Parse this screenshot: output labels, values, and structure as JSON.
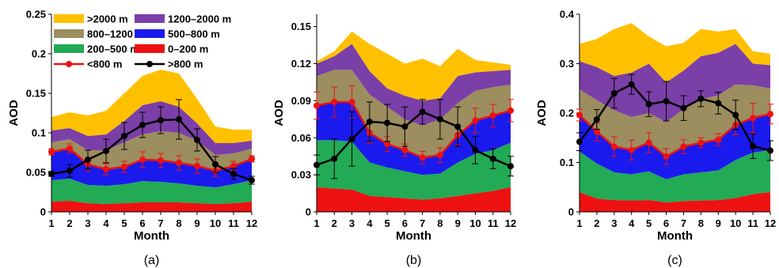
{
  "colors": {
    "band_0_200": "#ee1111",
    "band_200_500": "#22aa55",
    "band_500_800": "#1a1aee",
    "band_800_1200": "#9c8e5e",
    "band_1200_2000": "#7b3fa8",
    "band_gt2000": "#ffc000",
    "line_lt800": "#ee1111",
    "line_gt800": "#000000"
  },
  "legend": {
    "gt2000": ">2000 m",
    "b1200_2000": "1200–2000 m",
    "b800_1200": "800–1200 m",
    "b500_800": "500–800 m",
    "b200_500": "200–500 m",
    "b0_200": "0–200 m",
    "lt800": "<800 m",
    "gt800": ">800 m"
  },
  "chart_data": [
    {
      "type": "area",
      "panel_label": "(a)",
      "xlabel": "Month",
      "ylabel": "AOD",
      "x": [
        1,
        2,
        3,
        4,
        5,
        6,
        7,
        8,
        9,
        10,
        11,
        12
      ],
      "ylim": [
        0,
        0.25
      ],
      "yticks": [
        "0",
        "0.05",
        "0.1",
        "0.15",
        "0.2",
        "0.25"
      ],
      "legend_position": "top-left",
      "stacked_boundaries": [
        {
          "name": "0–200 m",
          "top": [
            0.013,
            0.014,
            0.011,
            0.01,
            0.011,
            0.012,
            0.012,
            0.012,
            0.011,
            0.01,
            0.011,
            0.013
          ]
        },
        {
          "name": "200–500 m",
          "top": [
            0.04,
            0.042,
            0.034,
            0.033,
            0.035,
            0.039,
            0.038,
            0.036,
            0.033,
            0.031,
            0.035,
            0.04
          ]
        },
        {
          "name": "500–800 m",
          "top": [
            0.076,
            0.08,
            0.06,
            0.054,
            0.057,
            0.066,
            0.065,
            0.062,
            0.058,
            0.052,
            0.058,
            0.067
          ]
        },
        {
          "name": "800–1200 m",
          "top": [
            0.088,
            0.092,
            0.078,
            0.078,
            0.088,
            0.098,
            0.102,
            0.1,
            0.09,
            0.072,
            0.074,
            0.08
          ]
        },
        {
          "name": "1200–2000 m",
          "top": [
            0.103,
            0.106,
            0.096,
            0.098,
            0.115,
            0.135,
            0.14,
            0.133,
            0.112,
            0.087,
            0.087,
            0.09
          ]
        },
        {
          "name": ">2000 m",
          "top": [
            0.12,
            0.126,
            0.122,
            0.128,
            0.15,
            0.172,
            0.18,
            0.175,
            0.143,
            0.108,
            0.104,
            0.104
          ]
        }
      ],
      "lines": [
        {
          "name": "<800 m",
          "values": [
            0.076,
            0.08,
            0.06,
            0.054,
            0.057,
            0.066,
            0.065,
            0.062,
            0.058,
            0.052,
            0.058,
            0.067
          ],
          "error": [
            0.004,
            0.006,
            0.008,
            0.007,
            0.007,
            0.01,
            0.009,
            0.009,
            0.009,
            0.007,
            0.006,
            0.004
          ]
        },
        {
          "name": ">800 m",
          "values": [
            0.048,
            0.052,
            0.066,
            0.077,
            0.096,
            0.11,
            0.116,
            0.117,
            0.091,
            0.06,
            0.048,
            0.04
          ],
          "error": [
            0.003,
            0.008,
            0.012,
            0.015,
            0.017,
            0.016,
            0.017,
            0.025,
            0.014,
            0.01,
            0.007,
            0.005
          ]
        }
      ]
    },
    {
      "type": "area",
      "panel_label": "(b)",
      "xlabel": "Month",
      "ylabel": "AOD",
      "x": [
        1,
        2,
        3,
        4,
        5,
        6,
        7,
        8,
        9,
        10,
        11,
        12
      ],
      "ylim": [
        0,
        0.16
      ],
      "yticks": [
        "0",
        "0.03",
        "0.06",
        "0.09",
        "0.12",
        "0.15"
      ],
      "stacked_boundaries": [
        {
          "name": "0–200 m",
          "top": [
            0.02,
            0.019,
            0.018,
            0.013,
            0.012,
            0.011,
            0.01,
            0.011,
            0.013,
            0.015,
            0.017,
            0.02
          ]
        },
        {
          "name": "200–500 m",
          "top": [
            0.058,
            0.058,
            0.057,
            0.04,
            0.036,
            0.033,
            0.03,
            0.031,
            0.04,
            0.047,
            0.05,
            0.056
          ]
        },
        {
          "name": "500–800 m",
          "top": [
            0.086,
            0.089,
            0.089,
            0.064,
            0.055,
            0.05,
            0.044,
            0.046,
            0.062,
            0.074,
            0.078,
            0.082
          ]
        },
        {
          "name": "800–1200 m",
          "top": [
            0.11,
            0.115,
            0.115,
            0.095,
            0.085,
            0.075,
            0.07,
            0.075,
            0.088,
            0.098,
            0.101,
            0.103
          ]
        },
        {
          "name": "1200–2000 m",
          "top": [
            0.12,
            0.126,
            0.136,
            0.114,
            0.1,
            0.094,
            0.09,
            0.092,
            0.11,
            0.113,
            0.114,
            0.115
          ]
        },
        {
          "name": ">2000 m",
          "top": [
            0.122,
            0.13,
            0.146,
            0.136,
            0.128,
            0.12,
            0.124,
            0.118,
            0.132,
            0.123,
            0.121,
            0.119
          ]
        }
      ],
      "lines": [
        {
          "name": "<800 m",
          "values": [
            0.086,
            0.089,
            0.089,
            0.064,
            0.055,
            0.05,
            0.044,
            0.046,
            0.062,
            0.074,
            0.078,
            0.082
          ],
          "error": [
            0.011,
            0.012,
            0.013,
            0.008,
            0.006,
            0.005,
            0.005,
            0.006,
            0.008,
            0.01,
            0.009,
            0.009
          ]
        },
        {
          "name": ">800 m",
          "values": [
            0.038,
            0.043,
            0.059,
            0.073,
            0.072,
            0.069,
            0.081,
            0.075,
            0.069,
            0.05,
            0.043,
            0.037
          ],
          "error": [
            0.008,
            0.016,
            0.022,
            0.016,
            0.015,
            0.016,
            0.01,
            0.016,
            0.016,
            0.011,
            0.008,
            0.008
          ]
        }
      ]
    },
    {
      "type": "area",
      "panel_label": "(c)",
      "xlabel": "Month",
      "ylabel": "AOD",
      "x": [
        1,
        2,
        3,
        4,
        5,
        6,
        7,
        8,
        9,
        10,
        11,
        12
      ],
      "ylim": [
        0,
        0.4
      ],
      "yticks": [
        "0",
        "0.1",
        "0.2",
        "0.3",
        "0.4"
      ],
      "stacked_boundaries": [
        {
          "name": "0–200 m",
          "top": [
            0.04,
            0.027,
            0.024,
            0.023,
            0.024,
            0.019,
            0.022,
            0.023,
            0.024,
            0.028,
            0.036,
            0.04
          ]
        },
        {
          "name": "200–500 m",
          "top": [
            0.122,
            0.098,
            0.08,
            0.076,
            0.082,
            0.066,
            0.076,
            0.08,
            0.084,
            0.105,
            0.12,
            0.125
          ]
        },
        {
          "name": "500–800 m",
          "top": [
            0.196,
            0.162,
            0.132,
            0.125,
            0.14,
            0.112,
            0.132,
            0.14,
            0.146,
            0.176,
            0.19,
            0.198
          ]
        },
        {
          "name": "800–1200 m",
          "top": [
            0.248,
            0.226,
            0.206,
            0.192,
            0.2,
            0.182,
            0.208,
            0.228,
            0.236,
            0.258,
            0.256,
            0.25
          ]
        },
        {
          "name": "1200–2000 m",
          "top": [
            0.305,
            0.293,
            0.275,
            0.282,
            0.3,
            0.262,
            0.286,
            0.315,
            0.322,
            0.34,
            0.3,
            0.297
          ]
        },
        {
          "name": ">2000 m",
          "top": [
            0.34,
            0.35,
            0.37,
            0.382,
            0.355,
            0.335,
            0.342,
            0.37,
            0.365,
            0.37,
            0.325,
            0.32
          ]
        }
      ],
      "lines": [
        {
          "name": "<800 m",
          "values": [
            0.196,
            0.162,
            0.132,
            0.125,
            0.14,
            0.112,
            0.132,
            0.14,
            0.146,
            0.176,
            0.19,
            0.198
          ],
          "error": [
            0.012,
            0.018,
            0.02,
            0.02,
            0.02,
            0.016,
            0.014,
            0.01,
            0.012,
            0.02,
            0.03,
            0.02
          ]
        },
        {
          "name": ">800 m",
          "values": [
            0.142,
            0.187,
            0.24,
            0.258,
            0.218,
            0.224,
            0.21,
            0.229,
            0.22,
            0.196,
            0.133,
            0.124
          ],
          "error": [
            0.018,
            0.02,
            0.03,
            0.02,
            0.025,
            0.04,
            0.025,
            0.016,
            0.022,
            0.03,
            0.025,
            0.02
          ]
        }
      ]
    }
  ]
}
